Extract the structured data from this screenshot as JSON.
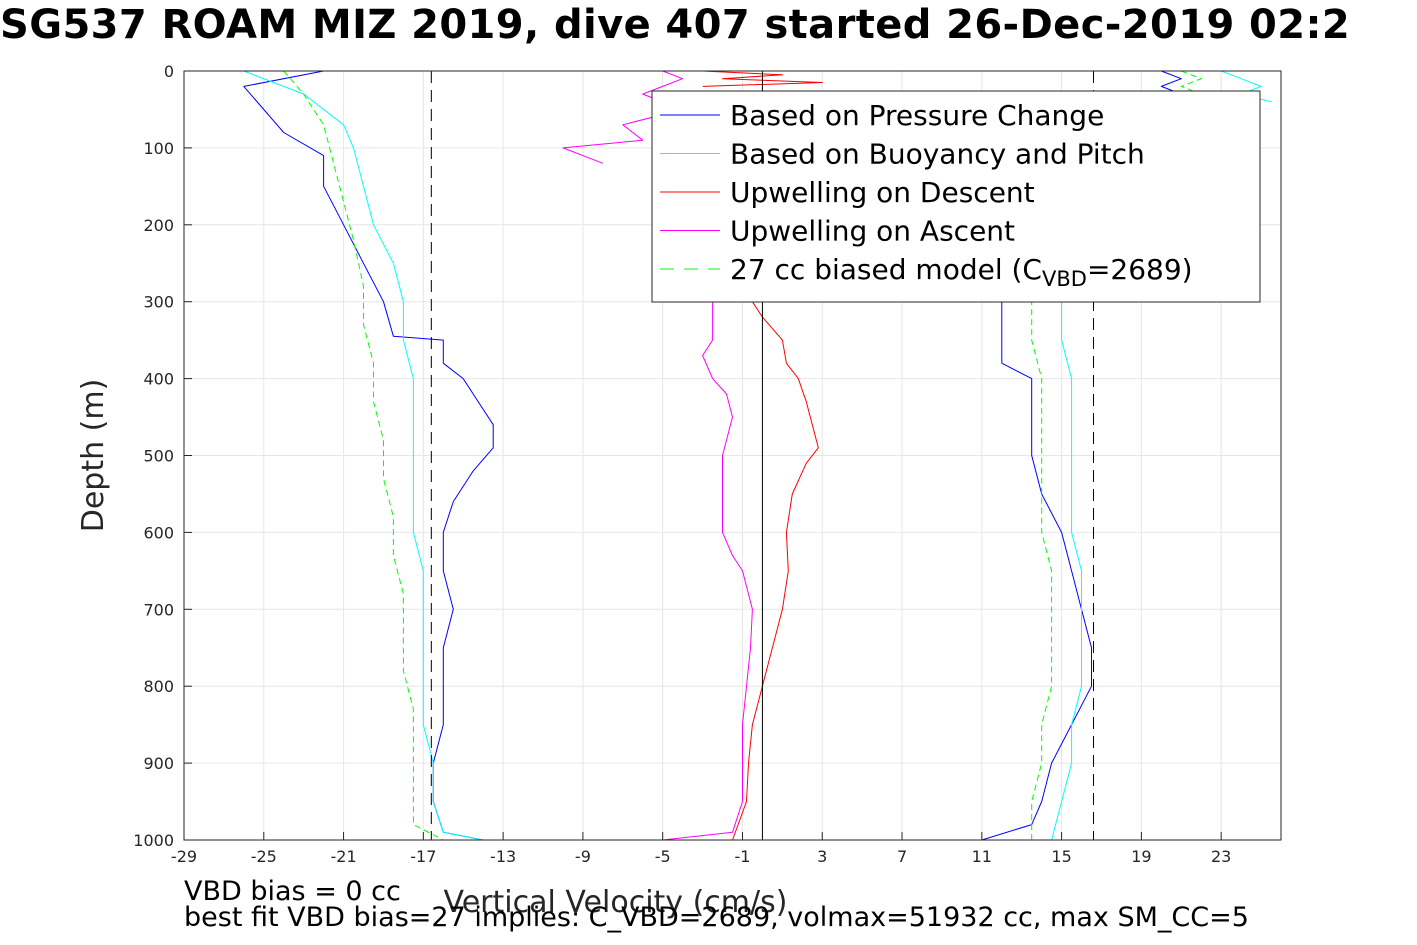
{
  "title": "SG537 ROAM MIZ 2019, dive 407 started 26-Dec-2019 02:2",
  "footer_lines": [
    "VBD bias = 0 cc",
    "best fit VBD bias=27 implies: C_VBD=2689, volmax=51932 cc, max SM_CC=5"
  ],
  "colors": {
    "pressure": "#0000ff",
    "buoyancy": "#00ffff",
    "descent": "#ff0000",
    "ascent": "#ff00ff",
    "model": "#00ff00",
    "reference_lines": "#000000",
    "grid": "#e6e6e6"
  },
  "chart_data": {
    "type": "line",
    "title": "SG537 ROAM MIZ 2019, dive 407 started 26-Dec-2019 02:2",
    "xlabel": "Vertical Velocity (cm/s)",
    "ylabel": "Depth (m)",
    "xlim": [
      -29,
      26
    ],
    "ylim": [
      0,
      1000
    ],
    "y_reversed": true,
    "grid": true,
    "legend_position": "top-right",
    "xticks": [
      -29,
      -25,
      -21,
      -17,
      -13,
      -9,
      -5,
      -1,
      3,
      7,
      11,
      15,
      19,
      23
    ],
    "xtick_labels": [
      "-29",
      "-25",
      "-21",
      "-17",
      "-13",
      "-9",
      "-5",
      "-1",
      "3",
      "7",
      "11",
      "15",
      "19",
      "23"
    ],
    "yticks": [
      0,
      100,
      200,
      300,
      400,
      500,
      600,
      700,
      800,
      900,
      1000
    ],
    "ytick_labels": [
      "0",
      "100",
      "200",
      "300",
      "400",
      "500",
      "600",
      "700",
      "800",
      "900",
      "1000"
    ],
    "vertical_lines": [
      {
        "x": -16.6,
        "style": "dashed"
      },
      {
        "x": 0,
        "style": "solid"
      },
      {
        "x": 16.6,
        "style": "dashed"
      }
    ],
    "legend": [
      {
        "name": "Based on Pressure Change",
        "color": "#0000ff",
        "style": "solid"
      },
      {
        "name": "Based on Buoyancy and Pitch",
        "color": "#00ffff",
        "style": "solid"
      },
      {
        "name": "Upwelling on Descent",
        "color": "#ff0000",
        "style": "solid"
      },
      {
        "name": "Upwelling on Ascent",
        "color": "#ff00ff",
        "style": "solid"
      },
      {
        "name": "27 cc biased model (C",
        "sub": "VBD",
        "suffix": "=2689)",
        "color": "#00ff00",
        "style": "dashed"
      }
    ],
    "series": [
      {
        "id": "pressure-descent",
        "color": "#0000ff",
        "points": [
          [
            -22,
            0
          ],
          [
            -26,
            20
          ],
          [
            -25,
            50
          ],
          [
            -24,
            80
          ],
          [
            -22,
            110
          ],
          [
            -22,
            150
          ],
          [
            -21,
            200
          ],
          [
            -20,
            250
          ],
          [
            -19,
            300
          ],
          [
            -18.5,
            345
          ],
          [
            -16,
            350
          ],
          [
            -16,
            380
          ],
          [
            -15,
            400
          ],
          [
            -14,
            440
          ],
          [
            -13.5,
            460
          ],
          [
            -13.5,
            490
          ],
          [
            -14.5,
            520
          ],
          [
            -15.5,
            560
          ],
          [
            -16,
            600
          ],
          [
            -16,
            650
          ],
          [
            -15.5,
            700
          ],
          [
            -16,
            750
          ],
          [
            -16,
            800
          ],
          [
            -16,
            850
          ],
          [
            -16.5,
            900
          ],
          [
            -16.5,
            950
          ],
          [
            -16,
            990
          ],
          [
            -14,
            1000
          ]
        ]
      },
      {
        "id": "buoyancy-descent",
        "color": "#00ffff",
        "points": [
          [
            -26,
            0
          ],
          [
            -23,
            30
          ],
          [
            -21,
            70
          ],
          [
            -20.5,
            100
          ],
          [
            -20,
            150
          ],
          [
            -19.5,
            200
          ],
          [
            -18.5,
            250
          ],
          [
            -18,
            300
          ],
          [
            -18,
            350
          ],
          [
            -17.5,
            400
          ],
          [
            -17.5,
            450
          ],
          [
            -17.5,
            500
          ],
          [
            -17.5,
            550
          ],
          [
            -17.5,
            600
          ],
          [
            -17,
            650
          ],
          [
            -17,
            700
          ],
          [
            -17,
            750
          ],
          [
            -17,
            800
          ],
          [
            -17,
            850
          ],
          [
            -16.5,
            900
          ],
          [
            -16.5,
            950
          ],
          [
            -16,
            990
          ],
          [
            -14,
            1000
          ]
        ]
      },
      {
        "id": "model-descent",
        "color": "#00ff00",
        "dashed": true,
        "points": [
          [
            -24,
            0
          ],
          [
            -23,
            30
          ],
          [
            -22,
            70
          ],
          [
            -21.5,
            120
          ],
          [
            -21,
            170
          ],
          [
            -20.5,
            220
          ],
          [
            -20,
            280
          ],
          [
            -20,
            330
          ],
          [
            -19.5,
            380
          ],
          [
            -19.5,
            430
          ],
          [
            -19,
            480
          ],
          [
            -19,
            530
          ],
          [
            -18.5,
            580
          ],
          [
            -18.5,
            630
          ],
          [
            -18,
            680
          ],
          [
            -18,
            730
          ],
          [
            -18,
            780
          ],
          [
            -17.5,
            830
          ],
          [
            -17.5,
            880
          ],
          [
            -17.5,
            930
          ],
          [
            -17.5,
            980
          ],
          [
            -16,
            1000
          ]
        ]
      },
      {
        "id": "pressure-ascent",
        "color": "#0000ff",
        "points": [
          [
            11,
            1000
          ],
          [
            13.5,
            980
          ],
          [
            14,
            950
          ],
          [
            14.5,
            900
          ],
          [
            15.5,
            850
          ],
          [
            16.5,
            800
          ],
          [
            16.5,
            750
          ],
          [
            16,
            700
          ],
          [
            15.5,
            650
          ],
          [
            15,
            600
          ],
          [
            14,
            550
          ],
          [
            13.5,
            500
          ],
          [
            13.5,
            450
          ],
          [
            13.5,
            400
          ],
          [
            12,
            380
          ],
          [
            12,
            350
          ],
          [
            12,
            310
          ],
          [
            12,
            300
          ]
        ]
      },
      {
        "id": "buoyancy-ascent",
        "color": "#00ffff",
        "points": [
          [
            14.5,
            1000
          ],
          [
            15,
            950
          ],
          [
            15.5,
            900
          ],
          [
            15.5,
            850
          ],
          [
            16,
            800
          ],
          [
            16,
            750
          ],
          [
            16,
            700
          ],
          [
            16,
            650
          ],
          [
            15.5,
            600
          ],
          [
            15.5,
            550
          ],
          [
            15.5,
            500
          ],
          [
            15.5,
            450
          ],
          [
            15.5,
            400
          ],
          [
            15,
            350
          ],
          [
            15,
            310
          ],
          [
            15,
            300
          ]
        ]
      },
      {
        "id": "model-ascent",
        "color": "#00ff00",
        "dashed": true,
        "points": [
          [
            13.5,
            1000
          ],
          [
            13.5,
            950
          ],
          [
            14,
            900
          ],
          [
            14,
            850
          ],
          [
            14.5,
            800
          ],
          [
            14.5,
            750
          ],
          [
            14.5,
            700
          ],
          [
            14.5,
            650
          ],
          [
            14,
            600
          ],
          [
            14,
            550
          ],
          [
            14,
            500
          ],
          [
            14,
            450
          ],
          [
            14,
            400
          ],
          [
            13.5,
            350
          ],
          [
            13.5,
            310
          ],
          [
            13.5,
            300
          ]
        ]
      },
      {
        "id": "pressure-surface",
        "color": "#0000ff",
        "points": [
          [
            20,
            0
          ],
          [
            21,
            10
          ],
          [
            20,
            20
          ],
          [
            21,
            30
          ],
          [
            20,
            40
          ]
        ]
      },
      {
        "id": "buoyancy-surface",
        "color": "#00ffff",
        "points": [
          [
            23,
            0
          ],
          [
            24,
            10
          ],
          [
            25,
            20
          ],
          [
            24,
            30
          ],
          [
            25.5,
            40
          ]
        ]
      },
      {
        "id": "model-surface",
        "color": "#00ff00",
        "dashed": true,
        "points": [
          [
            21,
            0
          ],
          [
            22,
            10
          ],
          [
            21,
            20
          ],
          [
            22,
            30
          ]
        ]
      },
      {
        "id": "upwelling-descent",
        "color": "#ff0000",
        "points": [
          [
            -1.5,
            1000
          ],
          [
            -0.8,
            950
          ],
          [
            -0.7,
            900
          ],
          [
            -0.5,
            850
          ],
          [
            0,
            800
          ],
          [
            0.5,
            750
          ],
          [
            1,
            700
          ],
          [
            1.3,
            650
          ],
          [
            1.2,
            600
          ],
          [
            1.5,
            550
          ],
          [
            2.2,
            510
          ],
          [
            2.8,
            490
          ],
          [
            2.5,
            460
          ],
          [
            2.2,
            430
          ],
          [
            1.8,
            400
          ],
          [
            1.2,
            380
          ],
          [
            1,
            350
          ],
          [
            0,
            320
          ],
          [
            -0.5,
            300
          ]
        ]
      },
      {
        "id": "upwelling-descent-surface",
        "color": "#ff0000",
        "points": [
          [
            -3,
            0
          ],
          [
            1,
            5
          ],
          [
            -2,
            10
          ],
          [
            3,
            15
          ],
          [
            -3,
            20
          ]
        ]
      },
      {
        "id": "upwelling-ascent",
        "color": "#ff00ff",
        "points": [
          [
            -5,
            1000
          ],
          [
            -1.5,
            990
          ],
          [
            -1,
            950
          ],
          [
            -1,
            900
          ],
          [
            -1,
            850
          ],
          [
            -0.8,
            800
          ],
          [
            -0.6,
            750
          ],
          [
            -0.5,
            700
          ],
          [
            -1,
            650
          ],
          [
            -1.5,
            630
          ],
          [
            -2,
            600
          ],
          [
            -2,
            550
          ],
          [
            -2,
            500
          ],
          [
            -1.5,
            450
          ],
          [
            -1.8,
            420
          ],
          [
            -2.5,
            400
          ],
          [
            -3,
            370
          ],
          [
            -2.5,
            350
          ],
          [
            -2.5,
            310
          ],
          [
            -2.5,
            300
          ]
        ]
      },
      {
        "id": "upwelling-ascent-surface",
        "color": "#ff00ff",
        "points": [
          [
            -8,
            120
          ],
          [
            -10,
            100
          ],
          [
            -6,
            90
          ],
          [
            -7,
            70
          ],
          [
            -4,
            50
          ],
          [
            -6,
            30
          ],
          [
            -5,
            20
          ],
          [
            -4,
            10
          ],
          [
            -5,
            0
          ]
        ]
      }
    ]
  }
}
